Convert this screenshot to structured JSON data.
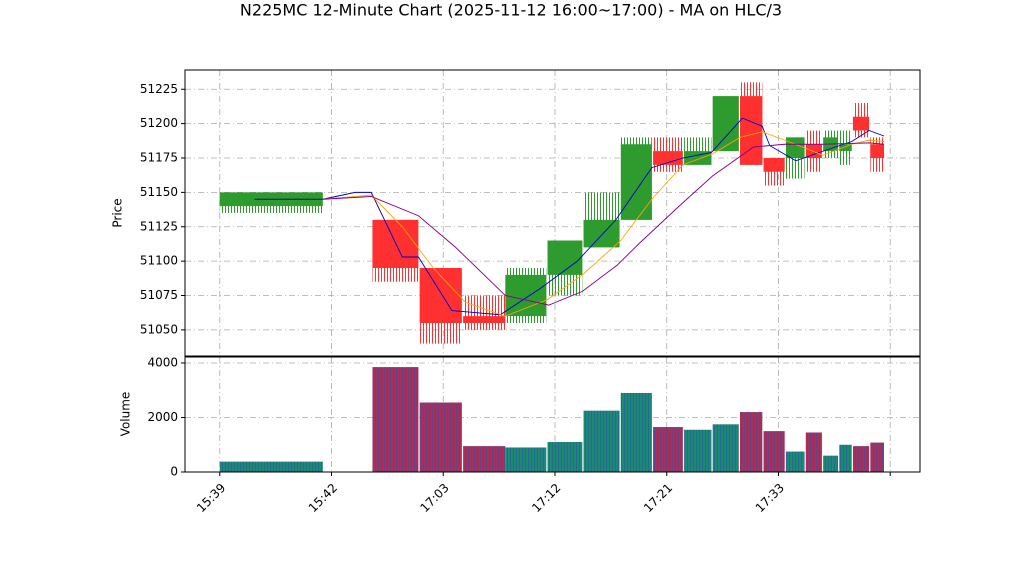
{
  "chart_data": {
    "type": "candlestick",
    "title": "N225MC 12-Minute Chart (2025-11-12 16:00~17:00) - MA on HLC/3",
    "ylabel": "Price",
    "volume_label": "Volume",
    "up_color": "#2e9b2e",
    "down_color": "#ff3030",
    "volume_up_color": "#1a8a70",
    "volume_down_color": "#a83058",
    "grid": true,
    "xlim": [
      -2.8,
      56.4
    ],
    "xticks": [
      {
        "value": 0,
        "label": "15:39"
      },
      {
        "value": 9,
        "label": "15:42"
      },
      {
        "value": 18,
        "label": "17:03"
      },
      {
        "value": 27,
        "label": "17:12"
      },
      {
        "value": 36,
        "label": "17:21"
      },
      {
        "value": 45,
        "label": "17:33"
      },
      {
        "value": 54,
        "label": null
      }
    ],
    "ylim": [
      51031,
      51239
    ],
    "yticks": [
      51050,
      51075,
      51100,
      51125,
      51150,
      51175,
      51200,
      51225
    ],
    "volume_ylim": [
      0,
      4220
    ],
    "volume_ticks": [
      0,
      2000,
      4000
    ],
    "candles": {
      "x0": [
        0,
        12.3,
        16.1,
        19.6,
        23,
        26.4,
        29.3,
        32.3,
        34.9,
        37.4,
        39.7,
        41.9,
        43.8,
        45.6,
        47.2,
        48.6,
        49.9,
        51,
        52.4
      ],
      "x1": [
        8.3,
        16,
        19.5,
        23,
        26.3,
        29.2,
        32.2,
        34.8,
        37.3,
        39.6,
        41.8,
        43.7,
        45.5,
        47.1,
        48.5,
        49.8,
        50.9,
        52.3,
        53.5
      ],
      "open": [
        51140,
        51130,
        51095,
        51060,
        51060,
        51090,
        51110,
        51130,
        51180,
        51170,
        51180,
        51220,
        51175,
        51175,
        51185,
        51180,
        51180,
        51205,
        51185
      ],
      "high": [
        51150,
        51130,
        51095,
        51075,
        51095,
        51115,
        51150,
        51190,
        51190,
        51190,
        51220,
        51230,
        51175,
        51190,
        51195,
        51195,
        51195,
        51215,
        51190
      ],
      "low": [
        51135,
        51085,
        51040,
        51050,
        51055,
        51075,
        51110,
        51130,
        51165,
        51170,
        51180,
        51170,
        51155,
        51160,
        51165,
        51175,
        51170,
        51190,
        51165
      ],
      "close": [
        51150,
        51095,
        51055,
        51055,
        51090,
        51115,
        51130,
        51185,
        51170,
        51180,
        51220,
        51170,
        51165,
        51190,
        51175,
        51190,
        51185,
        51195,
        51175
      ],
      "volume": [
        380,
        3850,
        2550,
        950,
        900,
        1100,
        2250,
        2900,
        1650,
        1550,
        1750,
        2200,
        1500,
        750,
        1450,
        600,
        1000,
        950,
        1080
      ]
    },
    "series": [
      {
        "color": "#0000cc",
        "x": [
          2.8,
          8.3,
          10.9,
          12.2,
          14.7,
          16,
          18.7,
          22.6,
          25.8,
          28.8,
          31.9,
          34.8,
          37.3,
          39.6,
          42.1,
          43.7,
          44.3,
          46.4,
          48.6,
          50.9,
          52.3,
          53.5
        ],
        "values": [
          51145,
          51145,
          51150,
          51150,
          51103,
          51103,
          51064,
          51061,
          51080,
          51100,
          51130,
          51168,
          51175,
          51179,
          51204,
          51198,
          51184,
          51173,
          51180,
          51187,
          51195,
          51191
        ]
      },
      {
        "color": "#ffa500",
        "x": [
          8.3,
          12.2,
          14.7,
          17.2,
          19.8,
          23,
          26.4,
          29.2,
          32.3,
          34.8,
          37.3,
          39.7,
          41.9,
          43.7,
          45.5,
          48.6,
          50.9,
          52.3,
          53.5
        ],
        "values": [
          51145,
          51148,
          51125,
          51095,
          51070,
          51060,
          51072,
          51090,
          51115,
          51145,
          51170,
          51178,
          51190,
          51194,
          51188,
          51177,
          51185,
          51188,
          51187
        ]
      },
      {
        "color": "#880088",
        "x": [
          8.3,
          12.2,
          16,
          19,
          23,
          26.5,
          29.2,
          32,
          33.8,
          37,
          39.7,
          43,
          45.5,
          48.6,
          52.3,
          53.5
        ],
        "values": [
          51145,
          51147,
          51133,
          51110,
          51075,
          51068,
          51078,
          51097,
          51113,
          51140,
          51162,
          51183,
          51185,
          51185,
          51186,
          51185
        ]
      }
    ]
  }
}
